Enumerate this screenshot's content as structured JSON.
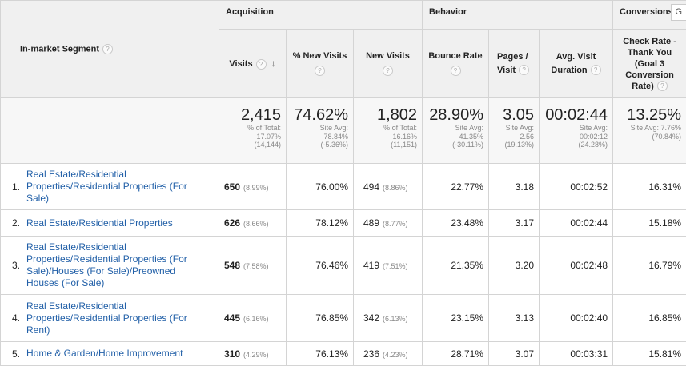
{
  "header": {
    "segment_label": "In-market Segment",
    "groups": {
      "acquisition": "Acquisition",
      "behavior": "Behavior",
      "conversions": "Conversions",
      "goal_tab": "G"
    },
    "columns": {
      "visits": "Visits",
      "new_visits_pct": "% New Visits",
      "new_visits": "New Visits",
      "bounce_rate": "Bounce Rate",
      "pages_per_visit": "Pages / Visit",
      "avg_visit_duration": "Avg. Visit Duration",
      "check_rate": "Check Rate - Thank You (Goal 3 Conversion Rate)"
    },
    "help_glyph": "?",
    "sort_glyph": "↓"
  },
  "totals": {
    "visits": {
      "value": "2,415",
      "l1": "% of Total:",
      "l2": "17.07%",
      "l3": "(14,144)"
    },
    "new_visits_pct": {
      "value": "74.62%",
      "l1": "Site Avg:",
      "l2": "78.84%",
      "l3": "(-5.36%)"
    },
    "new_visits": {
      "value": "1,802",
      "l1": "% of Total:",
      "l2": "16.16%",
      "l3": "(11,151)"
    },
    "bounce_rate": {
      "value": "28.90%",
      "l1": "Site Avg:",
      "l2": "41.35%",
      "l3": "(-30.11%)"
    },
    "pages_per_visit": {
      "value": "3.05",
      "l1": "Site Avg:",
      "l2": "2.56",
      "l3": "(19.13%)"
    },
    "avg_visit_duration": {
      "value": "00:02:44",
      "l1": "Site Avg:",
      "l2": "00:02:12",
      "l3": "(24.28%)"
    },
    "check_rate": {
      "value": "13.25%",
      "l1": "Site Avg: 7.76%",
      "l2": "(70.84%)"
    }
  },
  "rows": [
    {
      "n": "1.",
      "segment": "Real Estate/Residential Properties/Residential Properties (For Sale)",
      "visits": "650",
      "visits_pct": "(8.99%)",
      "new_pct": "76.00%",
      "new": "494",
      "new_share": "(8.86%)",
      "bounce": "22.77%",
      "pages": "3.18",
      "duration": "00:02:52",
      "check": "16.31%"
    },
    {
      "n": "2.",
      "segment": "Real Estate/Residential Properties",
      "visits": "626",
      "visits_pct": "(8.66%)",
      "new_pct": "78.12%",
      "new": "489",
      "new_share": "(8.77%)",
      "bounce": "23.48%",
      "pages": "3.17",
      "duration": "00:02:44",
      "check": "15.18%"
    },
    {
      "n": "3.",
      "segment": "Real Estate/Residential Properties/Residential Properties (For Sale)/Houses (For Sale)/Preowned Houses (For Sale)",
      "visits": "548",
      "visits_pct": "(7.58%)",
      "new_pct": "76.46%",
      "new": "419",
      "new_share": "(7.51%)",
      "bounce": "21.35%",
      "pages": "3.20",
      "duration": "00:02:48",
      "check": "16.79%"
    },
    {
      "n": "4.",
      "segment": "Real Estate/Residential Properties/Residential Properties (For Rent)",
      "visits": "445",
      "visits_pct": "(6.16%)",
      "new_pct": "76.85%",
      "new": "342",
      "new_share": "(6.13%)",
      "bounce": "23.15%",
      "pages": "3.13",
      "duration": "00:02:40",
      "check": "16.85%"
    },
    {
      "n": "5.",
      "segment": "Home & Garden/Home Improvement",
      "visits": "310",
      "visits_pct": "(4.29%)",
      "new_pct": "76.13%",
      "new": "236",
      "new_share": "(4.23%)",
      "bounce": "28.71%",
      "pages": "3.07",
      "duration": "00:03:31",
      "check": "15.81%"
    }
  ]
}
